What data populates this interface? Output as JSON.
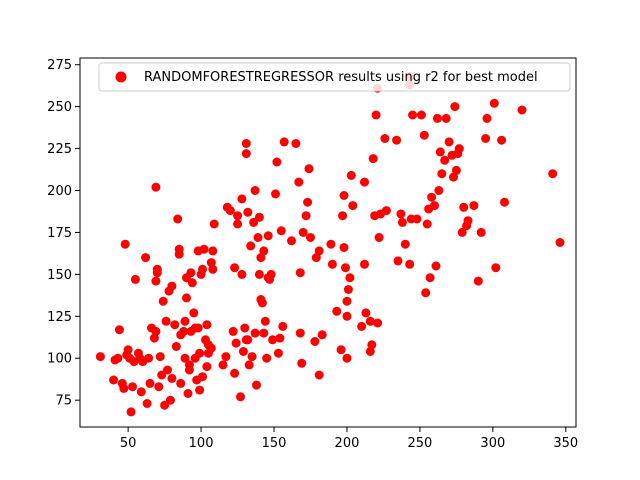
{
  "chart_data": {
    "type": "scatter",
    "title": "",
    "xlabel": "",
    "ylabel": "",
    "xlim": [
      17,
      357
    ],
    "ylim": [
      59,
      279
    ],
    "xticks": [
      50,
      100,
      150,
      200,
      250,
      300,
      350
    ],
    "yticks": [
      75,
      100,
      125,
      150,
      175,
      200,
      225,
      250,
      275
    ],
    "grid": false,
    "legend_position": "top-right",
    "series": [
      {
        "name": "RANDOMFORESTREGRESSOR results using r2 for best model",
        "color": "#ff0000",
        "points": [
          [
            31,
            101
          ],
          [
            40,
            87
          ],
          [
            41,
            99
          ],
          [
            43,
            100
          ],
          [
            44,
            117
          ],
          [
            46,
            85
          ],
          [
            47,
            82
          ],
          [
            48,
            168
          ],
          [
            49,
            102
          ],
          [
            50,
            105
          ],
          [
            51,
            100
          ],
          [
            52,
            68
          ],
          [
            53,
            83
          ],
          [
            54,
            98
          ],
          [
            55,
            147
          ],
          [
            57,
            103
          ],
          [
            58,
            100
          ],
          [
            59,
            80
          ],
          [
            60,
            98
          ],
          [
            62,
            160
          ],
          [
            63,
            73
          ],
          [
            64,
            100
          ],
          [
            65,
            85
          ],
          [
            66,
            118
          ],
          [
            68,
            112
          ],
          [
            69,
            116
          ],
          [
            69,
            202
          ],
          [
            69,
            146
          ],
          [
            70,
            151
          ],
          [
            70,
            153
          ],
          [
            71,
            83
          ],
          [
            72,
            101
          ],
          [
            73,
            90
          ],
          [
            74,
            134
          ],
          [
            75,
            72
          ],
          [
            76,
            122
          ],
          [
            77,
            93
          ],
          [
            78,
            140
          ],
          [
            79,
            75
          ],
          [
            80,
            143
          ],
          [
            80,
            88
          ],
          [
            82,
            120
          ],
          [
            83,
            107
          ],
          [
            84,
            183
          ],
          [
            85,
            162
          ],
          [
            85,
            165
          ],
          [
            86,
            85
          ],
          [
            86,
            114
          ],
          [
            88,
            116
          ],
          [
            89,
            122
          ],
          [
            89,
            100
          ],
          [
            90,
            148
          ],
          [
            90,
            136
          ],
          [
            91,
            79
          ],
          [
            92,
            93
          ],
          [
            92,
            96
          ],
          [
            93,
            116
          ],
          [
            93,
            151
          ],
          [
            94,
            145
          ],
          [
            95,
            127
          ],
          [
            96,
            100
          ],
          [
            96,
            118
          ],
          [
            97,
            87
          ],
          [
            98,
            164
          ],
          [
            98,
            118
          ],
          [
            99,
            81
          ],
          [
            99,
            103
          ],
          [
            100,
            150
          ],
          [
            101,
            153
          ],
          [
            101,
            89
          ],
          [
            102,
            165
          ],
          [
            103,
            111
          ],
          [
            104,
            95
          ],
          [
            104,
            120
          ],
          [
            105,
            108
          ],
          [
            105,
            103
          ],
          [
            107,
            106
          ],
          [
            107,
            157
          ],
          [
            108,
            164
          ],
          [
            108,
            153
          ],
          [
            109,
            180
          ],
          [
            115,
            96
          ],
          [
            117,
            101
          ],
          [
            118,
            190
          ],
          [
            120,
            188
          ],
          [
            122,
            116
          ],
          [
            123,
            91
          ],
          [
            123,
            154
          ],
          [
            124,
            109
          ],
          [
            125,
            185
          ],
          [
            125,
            180
          ],
          [
            127,
            77
          ],
          [
            128,
            150
          ],
          [
            128,
            195
          ],
          [
            129,
            104
          ],
          [
            130,
            118
          ],
          [
            131,
            228
          ],
          [
            131,
            222
          ],
          [
            131,
            111
          ],
          [
            132,
            111
          ],
          [
            132,
            187
          ],
          [
            133,
            96
          ],
          [
            134,
            167
          ],
          [
            135,
            101
          ],
          [
            136,
            181
          ],
          [
            137,
            200
          ],
          [
            137,
            115
          ],
          [
            138,
            84
          ],
          [
            139,
            172
          ],
          [
            140,
            184
          ],
          [
            140,
            150
          ],
          [
            141,
            135
          ],
          [
            141,
            160
          ],
          [
            142,
            133
          ],
          [
            143,
            115
          ],
          [
            143,
            164
          ],
          [
            144,
            122
          ],
          [
            145,
            100
          ],
          [
            146,
            173
          ],
          [
            146,
            148
          ],
          [
            147,
            147
          ],
          [
            148,
            150
          ],
          [
            149,
            111
          ],
          [
            151,
            198
          ],
          [
            152,
            217
          ],
          [
            153,
            103
          ],
          [
            154,
            112
          ],
          [
            155,
            176
          ],
          [
            156,
            119
          ],
          [
            157,
            229
          ],
          [
            162,
            170
          ],
          [
            165,
            228
          ],
          [
            167,
            205
          ],
          [
            168,
            151
          ],
          [
            168,
            115
          ],
          [
            169,
            97
          ],
          [
            170,
            175
          ],
          [
            172,
            185
          ],
          [
            173,
            193
          ],
          [
            174,
            213
          ],
          [
            175,
            172
          ],
          [
            178,
            110
          ],
          [
            179,
            160
          ],
          [
            181,
            164
          ],
          [
            181,
            90
          ],
          [
            183,
            114
          ],
          [
            189,
            168
          ],
          [
            190,
            156
          ],
          [
            193,
            128
          ],
          [
            196,
            105
          ],
          [
            197,
            185
          ],
          [
            198,
            166
          ],
          [
            198,
            197
          ],
          [
            199,
            154
          ],
          [
            200,
            100
          ],
          [
            200,
            125
          ],
          [
            200,
            134
          ],
          [
            201,
            141
          ],
          [
            202,
            148
          ],
          [
            203,
            209
          ],
          [
            204,
            191
          ],
          [
            210,
            119
          ],
          [
            212,
            156
          ],
          [
            212,
            205
          ],
          [
            213,
            127
          ],
          [
            216,
            104
          ],
          [
            216,
            122
          ],
          [
            217,
            108
          ],
          [
            218,
            219
          ],
          [
            219,
            185
          ],
          [
            220,
            245
          ],
          [
            221,
            121
          ],
          [
            221,
            261
          ],
          [
            222,
            172
          ],
          [
            223,
            186
          ],
          [
            226,
            231
          ],
          [
            227,
            188
          ],
          [
            234,
            230
          ],
          [
            235,
            158
          ],
          [
            237,
            186
          ],
          [
            238,
            181
          ],
          [
            240,
            168
          ],
          [
            243,
            263
          ],
          [
            243,
            268
          ],
          [
            243,
            156
          ],
          [
            244,
            183
          ],
          [
            245,
            245
          ],
          [
            248,
            183
          ],
          [
            251,
            245
          ],
          [
            253,
            233
          ],
          [
            254,
            139
          ],
          [
            255,
            180
          ],
          [
            256,
            189
          ],
          [
            257,
            148
          ],
          [
            258,
            196
          ],
          [
            260,
            191
          ],
          [
            261,
            155
          ],
          [
            262,
            243
          ],
          [
            263,
            200
          ],
          [
            264,
            223
          ],
          [
            265,
            210
          ],
          [
            267,
            218
          ],
          [
            268,
            243
          ],
          [
            270,
            229
          ],
          [
            272,
            221
          ],
          [
            273,
            208
          ],
          [
            274,
            250
          ],
          [
            275,
            212
          ],
          [
            276,
            222
          ],
          [
            277,
            225
          ],
          [
            279,
            175
          ],
          [
            280,
            190
          ],
          [
            282,
            179
          ],
          [
            283,
            182
          ],
          [
            287,
            191
          ],
          [
            290,
            146
          ],
          [
            292,
            175
          ],
          [
            295,
            231
          ],
          [
            296,
            243
          ],
          [
            301,
            252
          ],
          [
            302,
            154
          ],
          [
            306,
            230
          ],
          [
            308,
            193
          ],
          [
            320,
            248
          ],
          [
            341,
            210
          ],
          [
            346,
            169
          ]
        ]
      }
    ]
  }
}
